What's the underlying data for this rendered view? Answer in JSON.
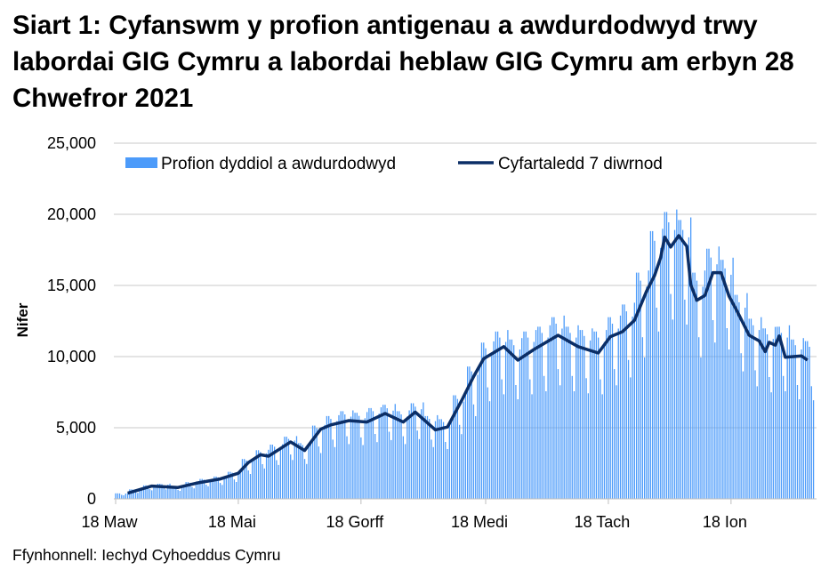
{
  "chart_data": {
    "type": "bar",
    "title": "Siart 1: Cyfanswm y profion antigenau a awdurdodwyd trwy labordai GIG Cymru a labordai heblaw GIG Cymru am erbyn 28 Chwefror 2021",
    "xlabel": "",
    "ylabel": "Nifer",
    "ylim": [
      0,
      25000
    ],
    "yticks": [
      "0",
      "5,000",
      "10,000",
      "15,000",
      "20,000",
      "25,000"
    ],
    "ytick_values": [
      0,
      5000,
      10000,
      15000,
      20000,
      25000
    ],
    "xticks": [
      {
        "label": "18 Maw",
        "date": "2020-03-18"
      },
      {
        "label": "18 Mai",
        "date": "2020-05-18"
      },
      {
        "label": "18 Gorff",
        "date": "2020-07-18"
      },
      {
        "label": "18 Medi",
        "date": "2020-09-18"
      },
      {
        "label": "18 Tach",
        "date": "2020-11-18"
      },
      {
        "label": "18 Ion",
        "date": "2021-01-18"
      }
    ],
    "grid": true,
    "legend_position": "top",
    "colors": {
      "bars": "#4c9bfa",
      "line": "#0b2e66",
      "grid": "#c8c8c8"
    },
    "series": [
      {
        "name": "Profion dyddiol a awdurdodwyd",
        "type": "bar",
        "start_date": "2020-03-18",
        "end_date": "2021-02-28",
        "values": [
          390,
          390,
          380,
          280,
          250,
          370,
          400,
          670,
          670,
          650,
          480,
          420,
          630,
          680,
          950,
          950,
          920,
          680,
          600,
          890,
          960,
          1060,
          1060,
          1030,
          760,
          670,
          1000,
          1070,
          900,
          900,
          860,
          640,
          560,
          840,
          900,
          1180,
          1180,
          1130,
          840,
          740,
          1100,
          1190,
          1400,
          1400,
          1350,
          1000,
          880,
          1310,
          1410,
          1570,
          1570,
          1510,
          1120,
          980,
          1470,
          1580,
          1900,
          1900,
          1840,
          1360,
          1190,
          1790,
          1920,
          2800,
          2800,
          2700,
          2000,
          1750,
          2630,
          2830,
          3420,
          3420,
          3290,
          2440,
          2140,
          3200,
          3450,
          3810,
          3810,
          3670,
          2720,
          2380,
          3570,
          3840,
          4370,
          4370,
          4210,
          3120,
          2730,
          4100,
          4410,
          3920,
          3920,
          3780,
          2800,
          2450,
          3680,
          3960,
          5150,
          5150,
          4970,
          3680,
          3220,
          4830,
          5200,
          5820,
          5820,
          5620,
          4160,
          3640,
          5460,
          5880,
          6160,
          6160,
          5940,
          4400,
          3850,
          5780,
          6220,
          6050,
          6050,
          5830,
          4320,
          3780,
          5670,
          6100,
          6380,
          6380,
          6160,
          4560,
          3990,
          5990,
          6440,
          6610,
          6610,
          6370,
          4720,
          4130,
          6200,
          6670,
          6160,
          6160,
          5940,
          4400,
          3850,
          5780,
          6220,
          6720,
          6720,
          6480,
          4800,
          4200,
          6300,
          6780,
          5820,
          5820,
          5620,
          4160,
          3640,
          5460,
          5880,
          5600,
          5600,
          5400,
          4000,
          3500,
          5250,
          5650,
          7280,
          7280,
          7020,
          5200,
          4550,
          6830,
          7350,
          9300,
          9300,
          8960,
          6640,
          5810,
          8720,
          9380,
          10980,
          10980,
          10580,
          7840,
          6860,
          10290,
          11070,
          11760,
          11760,
          11340,
          8400,
          7350,
          11030,
          11870,
          11200,
          11200,
          10800,
          8000,
          7000,
          10500,
          11300,
          11760,
          11760,
          11340,
          8400,
          7350,
          11030,
          11870,
          12100,
          12100,
          11660,
          8640,
          7560,
          11340,
          12200,
          12770,
          12770,
          12310,
          9120,
          7980,
          11970,
          12880,
          12100,
          12100,
          11660,
          8640,
          7560,
          11340,
          12200,
          11870,
          11870,
          11450,
          8480,
          7420,
          11130,
          11980,
          11760,
          11760,
          11340,
          8400,
          7350,
          11030,
          11870,
          12770,
          12770,
          12310,
          9120,
          7980,
          11970,
          12880,
          13660,
          13660,
          13180,
          9760,
          8540,
          12810,
          13790,
          15900,
          15900,
          15340,
          11360,
          9940,
          14910,
          16050,
          18820,
          18820,
          18140,
          13440,
          11760,
          17640,
          18980,
          20160,
          20160,
          19440,
          14400,
          12600,
          18900,
          20340,
          19600,
          19600,
          18900,
          14000,
          12250,
          18380,
          19780,
          15900,
          15900,
          15340,
          11360,
          9940,
          14910,
          16050,
          17580,
          17580,
          16960,
          12560,
          10990,
          16490,
          17740,
          16800,
          16800,
          16200,
          12000,
          10500,
          15750,
          16950,
          14340,
          14340,
          13820,
          10240,
          8960,
          13440,
          14460,
          12660,
          12660,
          12200,
          9040,
          7910,
          11870,
          12770,
          11980,
          11980,
          11560,
          8560,
          7490,
          11240,
          12090,
          12100,
          12100,
          11660,
          8640,
          7560,
          11340,
          12200,
          11200,
          11200,
          10800,
          8000,
          7000,
          10500,
          11300,
          11090,
          11090,
          10690,
          7920,
          6930
        ]
      },
      {
        "name": "Cyfartaledd 7 diwrnod",
        "type": "line",
        "points": [
          [
            "2020-03-24",
            400
          ],
          [
            "2020-04-05",
            900
          ],
          [
            "2020-04-18",
            800
          ],
          [
            "2020-04-27",
            1100
          ],
          [
            "2020-05-09",
            1400
          ],
          [
            "2020-05-18",
            1800
          ],
          [
            "2020-05-23",
            2550
          ],
          [
            "2020-05-29",
            3100
          ],
          [
            "2020-06-02",
            3000
          ],
          [
            "2020-06-07",
            3450
          ],
          [
            "2020-06-13",
            4000
          ],
          [
            "2020-06-20",
            3400
          ],
          [
            "2020-06-28",
            4900
          ],
          [
            "2020-07-03",
            5200
          ],
          [
            "2020-07-12",
            5500
          ],
          [
            "2020-07-21",
            5400
          ],
          [
            "2020-07-30",
            6000
          ],
          [
            "2020-08-08",
            5400
          ],
          [
            "2020-08-14",
            6100
          ],
          [
            "2020-08-24",
            4850
          ],
          [
            "2020-08-30",
            5050
          ],
          [
            "2020-09-06",
            6900
          ],
          [
            "2020-09-12",
            8600
          ],
          [
            "2020-09-17",
            9850
          ],
          [
            "2020-09-27",
            10700
          ],
          [
            "2020-10-04",
            9750
          ],
          [
            "2020-10-12",
            10500
          ],
          [
            "2020-10-24",
            11500
          ],
          [
            "2020-11-03",
            10700
          ],
          [
            "2020-11-13",
            10250
          ],
          [
            "2020-11-19",
            11400
          ],
          [
            "2020-11-25",
            11750
          ],
          [
            "2020-12-01",
            12550
          ],
          [
            "2020-12-07",
            14600
          ],
          [
            "2020-12-11",
            15700
          ],
          [
            "2020-12-14",
            16950
          ],
          [
            "2020-12-16",
            18400
          ],
          [
            "2020-12-19",
            17700
          ],
          [
            "2020-12-23",
            18500
          ],
          [
            "2020-12-27",
            17750
          ],
          [
            "2020-12-29",
            15050
          ],
          [
            "2021-01-01",
            13950
          ],
          [
            "2021-01-05",
            14300
          ],
          [
            "2021-01-09",
            15900
          ],
          [
            "2021-01-13",
            15900
          ],
          [
            "2021-01-17",
            14250
          ],
          [
            "2021-01-21",
            13200
          ],
          [
            "2021-01-27",
            11500
          ],
          [
            "2021-02-01",
            11100
          ],
          [
            "2021-02-04",
            10350
          ],
          [
            "2021-02-06",
            11000
          ],
          [
            "2021-02-09",
            10800
          ],
          [
            "2021-02-11",
            11450
          ],
          [
            "2021-02-14",
            9950
          ],
          [
            "2021-02-22",
            10050
          ],
          [
            "2021-02-25",
            9750
          ]
        ]
      }
    ]
  },
  "source": "Ffynhonnell: Iechyd Cyhoeddus Cymru"
}
